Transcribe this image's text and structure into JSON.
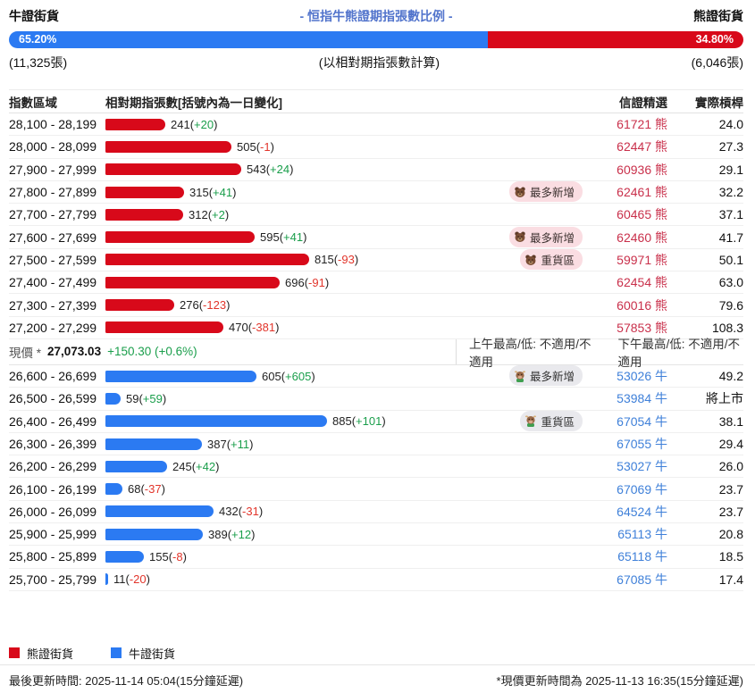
{
  "colors": {
    "bull": "#2b7af2",
    "bear": "#d8091a",
    "bull_code_text": "#3f80d9",
    "bear_code_text": "#c9304b",
    "positive_change": "#1a9e4b",
    "negative_change": "#e2352b",
    "title_blue": "#5274cc",
    "bear_badge_bg": "#fadde2",
    "bull_badge_bg": "#e9e9ed"
  },
  "header": {
    "bull_label": "牛證街貨",
    "title": "- 恒指牛熊證期指張數比例 -",
    "bear_label": "熊證街貨",
    "bull_pct": "65.20%",
    "bear_pct": "34.80%",
    "bull_pct_value": 65.2,
    "bear_pct_value": 34.8,
    "bull_contracts": "(11,325張)",
    "calc_note": "(以相對期指張數計算)",
    "bear_contracts": "(6,046張)"
  },
  "table": {
    "col_range": "指數區域",
    "col_bar": "相對期指張數[括號內為一日變化]",
    "col_code": "信證精選",
    "col_leverage": "實際槓桿"
  },
  "rows": [
    {
      "side": "bear",
      "range": "28,100 - 28,199",
      "value": 241,
      "change": "+20",
      "badge": null,
      "code": "61721",
      "unit": "熊",
      "leverage": "24.0"
    },
    {
      "side": "bear",
      "range": "28,000 - 28,099",
      "value": 505,
      "change": "-1",
      "badge": null,
      "code": "62447",
      "unit": "熊",
      "leverage": "27.3"
    },
    {
      "side": "bear",
      "range": "27,900 - 27,999",
      "value": 543,
      "change": "+24",
      "badge": null,
      "code": "60936",
      "unit": "熊",
      "leverage": "29.1"
    },
    {
      "side": "bear",
      "range": "27,800 - 27,899",
      "value": 315,
      "change": "+41",
      "badge": "最多新增",
      "code": "62461",
      "unit": "熊",
      "leverage": "32.2"
    },
    {
      "side": "bear",
      "range": "27,700 - 27,799",
      "value": 312,
      "change": "+2",
      "badge": null,
      "code": "60465",
      "unit": "熊",
      "leverage": "37.1"
    },
    {
      "side": "bear",
      "range": "27,600 - 27,699",
      "value": 595,
      "change": "+41",
      "badge": "最多新增",
      "code": "62460",
      "unit": "熊",
      "leverage": "41.7"
    },
    {
      "side": "bear",
      "range": "27,500 - 27,599",
      "value": 815,
      "change": "-93",
      "badge": "重貨區",
      "code": "59971",
      "unit": "熊",
      "leverage": "50.1"
    },
    {
      "side": "bear",
      "range": "27,400 - 27,499",
      "value": 696,
      "change": "-91",
      "badge": null,
      "code": "62454",
      "unit": "熊",
      "leverage": "63.0"
    },
    {
      "side": "bear",
      "range": "27,300 - 27,399",
      "value": 276,
      "change": "-123",
      "badge": null,
      "code": "60016",
      "unit": "熊",
      "leverage": "79.6"
    },
    {
      "side": "bear",
      "range": "27,200 - 27,299",
      "value": 470,
      "change": "-381",
      "badge": null,
      "code": "57853",
      "unit": "熊",
      "leverage": "108.3"
    },
    {
      "side": "bull",
      "range": "26,600 - 26,699",
      "value": 605,
      "change": "+605",
      "badge": "最多新增",
      "code": "53026",
      "unit": "牛",
      "leverage": "49.2"
    },
    {
      "side": "bull",
      "range": "26,500 - 26,599",
      "value": 59,
      "change": "+59",
      "badge": null,
      "code": "53984",
      "unit": "牛",
      "leverage": "將上市"
    },
    {
      "side": "bull",
      "range": "26,400 - 26,499",
      "value": 885,
      "change": "+101",
      "badge": "重貨區",
      "code": "67054",
      "unit": "牛",
      "leverage": "38.1"
    },
    {
      "side": "bull",
      "range": "26,300 - 26,399",
      "value": 387,
      "change": "+11",
      "badge": null,
      "code": "67055",
      "unit": "牛",
      "leverage": "29.4"
    },
    {
      "side": "bull",
      "range": "26,200 - 26,299",
      "value": 245,
      "change": "+42",
      "badge": null,
      "code": "53027",
      "unit": "牛",
      "leverage": "26.0"
    },
    {
      "side": "bull",
      "range": "26,100 - 26,199",
      "value": 68,
      "change": "-37",
      "badge": null,
      "code": "67069",
      "unit": "牛",
      "leverage": "23.7"
    },
    {
      "side": "bull",
      "range": "26,000 - 26,099",
      "value": 432,
      "change": "-31",
      "badge": null,
      "code": "64524",
      "unit": "牛",
      "leverage": "23.7"
    },
    {
      "side": "bull",
      "range": "25,900 - 25,999",
      "value": 389,
      "change": "+12",
      "badge": null,
      "code": "65113",
      "unit": "牛",
      "leverage": "20.8"
    },
    {
      "side": "bull",
      "range": "25,800 - 25,899",
      "value": 155,
      "change": "-8",
      "badge": null,
      "code": "65118",
      "unit": "牛",
      "leverage": "18.5"
    },
    {
      "side": "bull",
      "range": "25,700 - 25,799",
      "value": 11,
      "change": "-20",
      "badge": null,
      "code": "67085",
      "unit": "牛",
      "leverage": "17.4"
    }
  ],
  "spot": {
    "label": "現價 *",
    "price": "27,073.03",
    "change": "+150.30 (+0.6%)",
    "am": "上午最高/低: 不適用/不適用",
    "pm": "下午最高/低: 不適用/不適用"
  },
  "legend": {
    "bear": "熊證街貨",
    "bull": "牛證街貨"
  },
  "footer": {
    "updated": "最後更新時間: 2025-11-14 05:04(15分鐘延遲)",
    "price_updated": "*現價更新時間為 2025-11-13 16:35(15分鐘延遲)"
  },
  "chart_data": [
    {
      "type": "bar",
      "subtype": "ratio",
      "title": "- 恒指牛熊證期指張數比例 -",
      "categories": [
        "牛證街貨",
        "熊證街貨"
      ],
      "values": [
        65.2,
        34.8
      ],
      "unit": "%",
      "contracts": [
        11325,
        6046
      ],
      "note": "(以相對期指張數計算)",
      "legend_position": "top-sides"
    },
    {
      "type": "bar",
      "orientation": "horizontal",
      "xlabel": "相對期指張數[括號內為一日變化]",
      "ylabel": "指數區域",
      "categories": [
        "28,100 - 28,199",
        "28,000 - 28,099",
        "27,900 - 27,999",
        "27,800 - 27,899",
        "27,700 - 27,799",
        "27,600 - 27,699",
        "27,500 - 27,599",
        "27,400 - 27,499",
        "27,300 - 27,399",
        "27,200 - 27,299",
        "26,600 - 26,699",
        "26,500 - 26,599",
        "26,400 - 26,499",
        "26,300 - 26,399",
        "26,200 - 26,299",
        "26,100 - 26,199",
        "26,000 - 26,099",
        "25,900 - 25,999",
        "25,800 - 25,899",
        "25,700 - 25,799"
      ],
      "series": [
        {
          "name": "熊證街貨",
          "color": "#d8091a",
          "values": [
            241,
            505,
            543,
            315,
            312,
            595,
            815,
            696,
            276,
            470,
            null,
            null,
            null,
            null,
            null,
            null,
            null,
            null,
            null,
            null
          ],
          "one_day_changes": [
            20,
            -1,
            24,
            41,
            2,
            41,
            -93,
            -91,
            -123,
            -381,
            null,
            null,
            null,
            null,
            null,
            null,
            null,
            null,
            null,
            null
          ]
        },
        {
          "name": "牛證街貨",
          "color": "#2b7af2",
          "values": [
            null,
            null,
            null,
            null,
            null,
            null,
            null,
            null,
            null,
            null,
            605,
            59,
            885,
            387,
            245,
            68,
            432,
            389,
            155,
            11
          ],
          "one_day_changes": [
            null,
            null,
            null,
            null,
            null,
            null,
            null,
            null,
            null,
            null,
            605,
            59,
            101,
            11,
            42,
            -37,
            -31,
            12,
            -8,
            -20
          ]
        }
      ],
      "annotations": [
        {
          "category": "27,800 - 27,899",
          "label": "最多新增",
          "side": "bear"
        },
        {
          "category": "27,600 - 27,699",
          "label": "最多新增",
          "side": "bear"
        },
        {
          "category": "27,500 - 27,599",
          "label": "重貨區",
          "side": "bear"
        },
        {
          "category": "26,600 - 26,699",
          "label": "最多新增",
          "side": "bull"
        },
        {
          "category": "26,400 - 26,499",
          "label": "重貨區",
          "side": "bull"
        }
      ],
      "spot_price": 27073.03,
      "spot_change": "+150.30 (+0.6%)",
      "xlim": [
        0,
        900
      ],
      "grid": false,
      "legend_position": "bottom-left"
    }
  ]
}
